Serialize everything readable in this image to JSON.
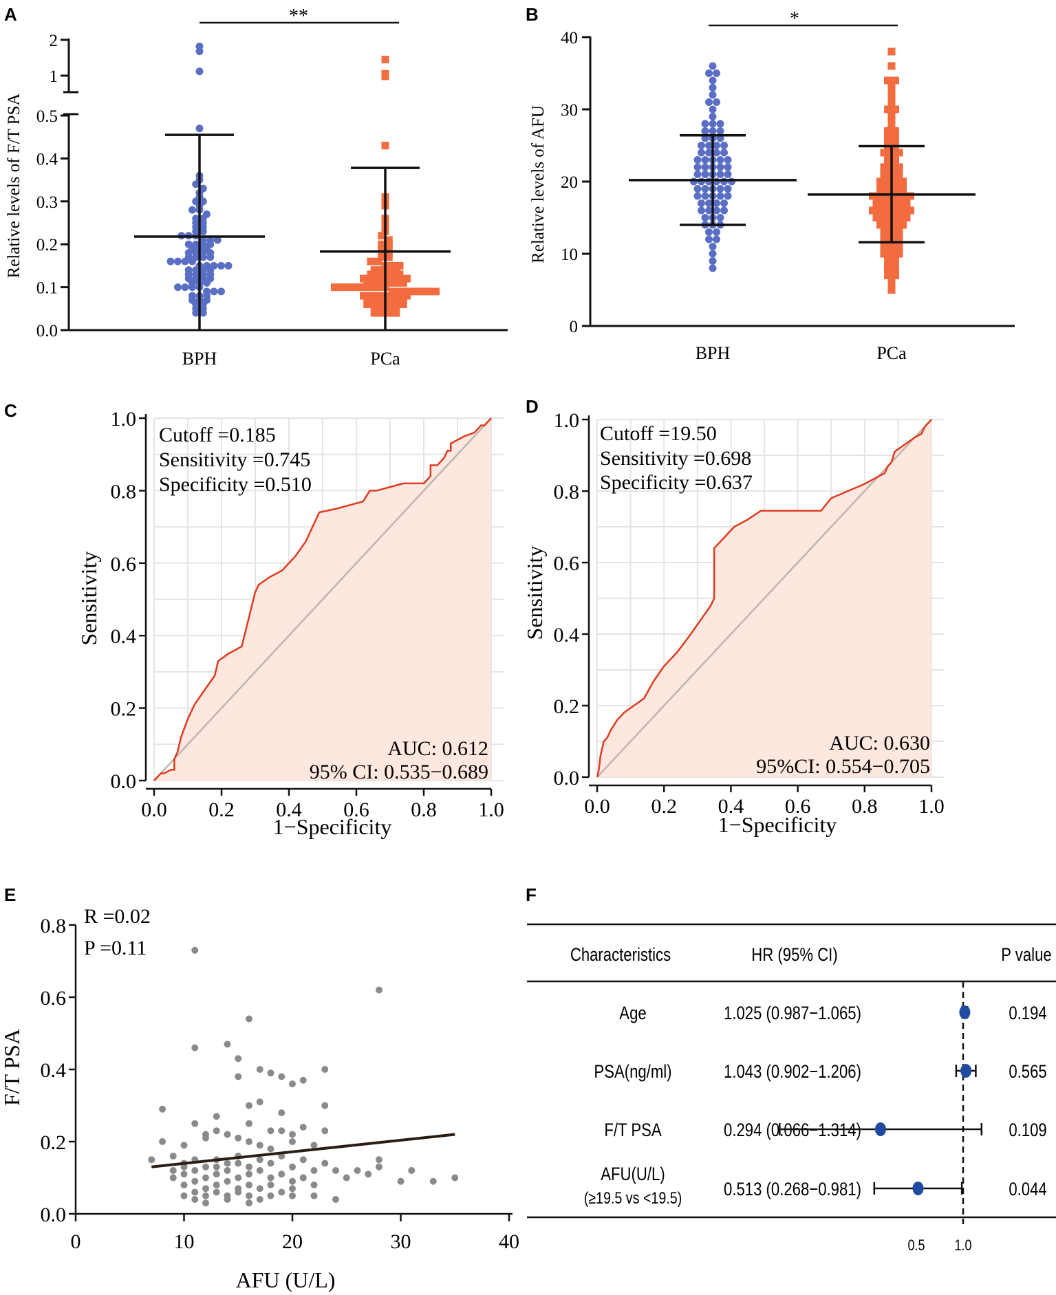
{
  "figure": {
    "colors": {
      "bph": "#5a6fc4",
      "pca": "#f26c3f",
      "roc_line": "#e03a1e",
      "roc_fill": "#fde7de",
      "diag": "#bdb5b0",
      "grid": "#e4e4e4",
      "scatter": "#8a8a8a",
      "forest": "#1f4aa0",
      "axis": "#111111"
    }
  },
  "chart_data": [
    {
      "panel": "A",
      "type": "scatter",
      "subtype": "dot-plot with mean and SD",
      "title": "",
      "ylabel": "Relative levels of F/T PSA",
      "xlabel": "",
      "categories": [
        "BPH",
        "PCa"
      ],
      "ylim_lower": [
        0,
        0.5
      ],
      "ylim_upper": [
        0.5,
        2
      ],
      "yticks_lower": [
        "0.0",
        "0.1",
        "0.2",
        "0.3",
        "0.4",
        "0.5"
      ],
      "yticks_upper": [
        "1",
        "2"
      ],
      "significance": "**",
      "series": [
        {
          "name": "BPH",
          "mean": 0.218,
          "sd_upper": 0.455,
          "sd_lower": 0.0,
          "values": [
            1.82,
            1.68,
            1.12,
            0.47,
            0.36,
            0.35,
            0.34,
            0.33,
            0.32,
            0.31,
            0.3,
            0.3,
            0.29,
            0.28,
            0.28,
            0.27,
            0.26,
            0.26,
            0.25,
            0.25,
            0.24,
            0.24,
            0.23,
            0.23,
            0.22,
            0.22,
            0.22,
            0.21,
            0.21,
            0.21,
            0.2,
            0.2,
            0.2,
            0.2,
            0.19,
            0.19,
            0.19,
            0.18,
            0.18,
            0.18,
            0.18,
            0.17,
            0.17,
            0.17,
            0.17,
            0.16,
            0.16,
            0.16,
            0.16,
            0.15,
            0.15,
            0.15,
            0.15,
            0.15,
            0.14,
            0.14,
            0.14,
            0.14,
            0.13,
            0.13,
            0.13,
            0.13,
            0.12,
            0.12,
            0.12,
            0.12,
            0.11,
            0.11,
            0.11,
            0.1,
            0.1,
            0.1,
            0.1,
            0.09,
            0.09,
            0.09,
            0.08,
            0.08,
            0.08,
            0.07,
            0.07,
            0.07,
            0.06,
            0.06,
            0.05,
            0.05,
            0.04,
            0.04
          ]
        },
        {
          "name": "PCa",
          "mean": 0.183,
          "sd_upper": 0.378,
          "sd_lower": 0.0,
          "values": [
            1.45,
            1.05,
            0.98,
            0.43,
            0.31,
            0.3,
            0.29,
            0.26,
            0.25,
            0.24,
            0.23,
            0.22,
            0.21,
            0.2,
            0.2,
            0.19,
            0.19,
            0.18,
            0.18,
            0.17,
            0.17,
            0.16,
            0.16,
            0.15,
            0.15,
            0.15,
            0.14,
            0.14,
            0.14,
            0.14,
            0.13,
            0.13,
            0.13,
            0.13,
            0.13,
            0.12,
            0.12,
            0.12,
            0.12,
            0.12,
            0.12,
            0.12,
            0.11,
            0.11,
            0.11,
            0.11,
            0.11,
            0.11,
            0.1,
            0.1,
            0.1,
            0.1,
            0.1,
            0.1,
            0.1,
            0.1,
            0.09,
            0.09,
            0.09,
            0.09,
            0.09,
            0.09,
            0.09,
            0.08,
            0.08,
            0.08,
            0.08,
            0.08,
            0.08,
            0.08,
            0.07,
            0.07,
            0.07,
            0.07,
            0.07,
            0.07,
            0.06,
            0.06,
            0.06,
            0.06,
            0.06,
            0.06,
            0.05,
            0.05,
            0.05,
            0.05,
            0.04,
            0.04,
            0.04,
            0.04
          ]
        }
      ]
    },
    {
      "panel": "B",
      "type": "scatter",
      "subtype": "dot-plot with mean and SD",
      "title": "",
      "ylabel": "Relative levels of AFU",
      "xlabel": "",
      "categories": [
        "BPH",
        "PCa"
      ],
      "ylim": [
        0,
        40
      ],
      "yticks": [
        "0",
        "10",
        "20",
        "30",
        "40"
      ],
      "significance": "*",
      "series": [
        {
          "name": "BPH",
          "mean": 20.2,
          "sd_upper": 26.4,
          "sd_lower": 14.0,
          "values": [
            36,
            35,
            35,
            34,
            33,
            32,
            31,
            31,
            30,
            29,
            28,
            28,
            28,
            27,
            27,
            27,
            26,
            26,
            26,
            25,
            25,
            25,
            25,
            24,
            24,
            24,
            24,
            23,
            23,
            23,
            23,
            23,
            22,
            22,
            22,
            22,
            22,
            21,
            21,
            21,
            21,
            21,
            20,
            20,
            20,
            20,
            20,
            20,
            19,
            19,
            19,
            19,
            19,
            18,
            18,
            18,
            18,
            18,
            17,
            17,
            17,
            17,
            16,
            16,
            16,
            16,
            15,
            15,
            15,
            14,
            14,
            14,
            13,
            13,
            12,
            12,
            11,
            10,
            9,
            8
          ]
        },
        {
          "name": "PCa",
          "mean": 18.2,
          "sd_upper": 24.9,
          "sd_lower": 11.6,
          "values": [
            38,
            36,
            34,
            34,
            33,
            32,
            31,
            30,
            30,
            29,
            28,
            27,
            27,
            26,
            26,
            25,
            25,
            24,
            24,
            24,
            23,
            23,
            22,
            22,
            22,
            21,
            21,
            21,
            20,
            20,
            20,
            20,
            19,
            19,
            19,
            19,
            18,
            18,
            18,
            18,
            18,
            18,
            17,
            17,
            17,
            17,
            17,
            16,
            16,
            16,
            16,
            16,
            16,
            15,
            15,
            15,
            15,
            15,
            14,
            14,
            14,
            14,
            13,
            13,
            13,
            12,
            12,
            12,
            11,
            11,
            11,
            10,
            10,
            10,
            9,
            9,
            8,
            8,
            7,
            7,
            6,
            5
          ]
        }
      ]
    },
    {
      "panel": "C",
      "type": "line",
      "subtype": "ROC curve",
      "xlabel": "1−Specificity",
      "ylabel": "Sensitivity",
      "xlim": [
        0,
        1
      ],
      "ylim": [
        0,
        1
      ],
      "xticks": [
        "0.0",
        "0.2",
        "0.4",
        "0.6",
        "0.8",
        "1.0"
      ],
      "yticks": [
        "0.0",
        "0.2",
        "0.4",
        "0.6",
        "0.8",
        "1.0"
      ],
      "annotations": [
        "Cutoff =0.185",
        "Sensitivity =0.745",
        "Specificity =0.510",
        "AUC: 0.612",
        "95% CI: 0.535−0.689"
      ],
      "x": [
        0,
        0.01,
        0.02,
        0.03,
        0.05,
        0.06,
        0.06,
        0.07,
        0.08,
        0.1,
        0.12,
        0.15,
        0.18,
        0.19,
        0.22,
        0.26,
        0.3,
        0.31,
        0.34,
        0.38,
        0.42,
        0.45,
        0.49,
        0.54,
        0.58,
        0.62,
        0.64,
        0.66,
        0.7,
        0.74,
        0.8,
        0.81,
        0.82,
        0.82,
        0.84,
        0.86,
        0.87,
        0.88,
        0.88,
        0.9,
        0.92,
        0.95,
        0.96,
        0.97,
        0.98,
        0.99,
        1
      ],
      "y": [
        0,
        0.01,
        0.02,
        0.02,
        0.03,
        0.03,
        0.06,
        0.08,
        0.12,
        0.17,
        0.21,
        0.25,
        0.29,
        0.33,
        0.35,
        0.37,
        0.52,
        0.54,
        0.56,
        0.58,
        0.62,
        0.66,
        0.74,
        0.75,
        0.76,
        0.77,
        0.8,
        0.8,
        0.81,
        0.82,
        0.82,
        0.83,
        0.84,
        0.87,
        0.87,
        0.89,
        0.91,
        0.91,
        0.93,
        0.94,
        0.95,
        0.96,
        0.97,
        0.98,
        0.98,
        0.99,
        1
      ]
    },
    {
      "panel": "D",
      "type": "line",
      "subtype": "ROC curve",
      "xlabel": "1−Specificity",
      "ylabel": "Sensitivity",
      "xlim": [
        0,
        1
      ],
      "ylim": [
        0,
        1
      ],
      "xticks": [
        "0.0",
        "0.2",
        "0.4",
        "0.6",
        "0.8",
        "1.0"
      ],
      "yticks": [
        "0.0",
        "0.2",
        "0.4",
        "0.6",
        "0.8",
        "1.0"
      ],
      "annotations": [
        "Cutoff =19.50",
        "Sensitivity =0.698",
        "Specificity =0.637",
        "AUC: 0.630",
        "95%CI: 0.554−0.705"
      ],
      "x": [
        0,
        0.005,
        0.01,
        0.02,
        0.03,
        0.04,
        0.06,
        0.08,
        0.11,
        0.14,
        0.17,
        0.2,
        0.24,
        0.28,
        0.31,
        0.34,
        0.35,
        0.35,
        0.38,
        0.41,
        0.45,
        0.49,
        0.55,
        0.62,
        0.67,
        0.7,
        0.75,
        0.8,
        0.84,
        0.86,
        0.87,
        0.88,
        0.89,
        0.92,
        0.95,
        0.97,
        0.98,
        1
      ],
      "y": [
        0,
        0.02,
        0.06,
        0.1,
        0.11,
        0.13,
        0.16,
        0.18,
        0.2,
        0.22,
        0.27,
        0.31,
        0.35,
        0.4,
        0.44,
        0.48,
        0.5,
        0.64,
        0.67,
        0.7,
        0.72,
        0.745,
        0.745,
        0.745,
        0.745,
        0.78,
        0.8,
        0.82,
        0.84,
        0.85,
        0.87,
        0.88,
        0.91,
        0.93,
        0.95,
        0.96,
        0.98,
        1
      ]
    },
    {
      "panel": "E",
      "type": "scatter",
      "xlabel": "AFU (U/L)",
      "ylabel": "F/T PSA",
      "xlim": [
        0,
        40
      ],
      "ylim": [
        0,
        0.8
      ],
      "xticks": [
        "0",
        "10",
        "20",
        "30",
        "40"
      ],
      "yticks": [
        "0.0",
        "0.2",
        "0.4",
        "0.6",
        "0.8"
      ],
      "annotations": [
        "R  =0.02",
        "P  =0.11"
      ],
      "fit_line": {
        "x": [
          7,
          35
        ],
        "y": [
          0.13,
          0.22
        ]
      },
      "points": [
        [
          11,
          0.73
        ],
        [
          28,
          0.62
        ],
        [
          16,
          0.54
        ],
        [
          14,
          0.47
        ],
        [
          11,
          0.46
        ],
        [
          15,
          0.43
        ],
        [
          17,
          0.4
        ],
        [
          23,
          0.4
        ],
        [
          15,
          0.38
        ],
        [
          18,
          0.39
        ],
        [
          21,
          0.37
        ],
        [
          20,
          0.36
        ],
        [
          19,
          0.38
        ],
        [
          17,
          0.31
        ],
        [
          16,
          0.3
        ],
        [
          23,
          0.3
        ],
        [
          19,
          0.28
        ],
        [
          13,
          0.27
        ],
        [
          16,
          0.25
        ],
        [
          11,
          0.25
        ],
        [
          21,
          0.24
        ],
        [
          12,
          0.22
        ],
        [
          13,
          0.23
        ],
        [
          18,
          0.23
        ],
        [
          19,
          0.23
        ],
        [
          20,
          0.22
        ],
        [
          23,
          0.23
        ],
        [
          8,
          0.2
        ],
        [
          8,
          0.29
        ],
        [
          10,
          0.19
        ],
        [
          12,
          0.21
        ],
        [
          14,
          0.22
        ],
        [
          15,
          0.21
        ],
        [
          16,
          0.2
        ],
        [
          17,
          0.19
        ],
        [
          18,
          0.18
        ],
        [
          20,
          0.2
        ],
        [
          22,
          0.19
        ],
        [
          28,
          0.15
        ],
        [
          28,
          0.13
        ],
        [
          7,
          0.15
        ],
        [
          9,
          0.16
        ],
        [
          10,
          0.14
        ],
        [
          11,
          0.15
        ],
        [
          12,
          0.13
        ],
        [
          13,
          0.15
        ],
        [
          14,
          0.14
        ],
        [
          15,
          0.16
        ],
        [
          16,
          0.13
        ],
        [
          17,
          0.15
        ],
        [
          18,
          0.14
        ],
        [
          19,
          0.16
        ],
        [
          20,
          0.13
        ],
        [
          21,
          0.15
        ],
        [
          22,
          0.12
        ],
        [
          23,
          0.14
        ],
        [
          24,
          0.12
        ],
        [
          25,
          0.1
        ],
        [
          26,
          0.12
        ],
        [
          27,
          0.11
        ],
        [
          9,
          0.12
        ],
        [
          10,
          0.11
        ],
        [
          11,
          0.12
        ],
        [
          12,
          0.1
        ],
        [
          13,
          0.11
        ],
        [
          14,
          0.12
        ],
        [
          15,
          0.1
        ],
        [
          16,
          0.11
        ],
        [
          17,
          0.12
        ],
        [
          18,
          0.1
        ],
        [
          19,
          0.11
        ],
        [
          20,
          0.09
        ],
        [
          21,
          0.1
        ],
        [
          22,
          0.08
        ],
        [
          10,
          0.08
        ],
        [
          11,
          0.09
        ],
        [
          12,
          0.07
        ],
        [
          13,
          0.08
        ],
        [
          14,
          0.09
        ],
        [
          15,
          0.07
        ],
        [
          16,
          0.08
        ],
        [
          17,
          0.07
        ],
        [
          18,
          0.08
        ],
        [
          19,
          0.06
        ],
        [
          20,
          0.07
        ],
        [
          10,
          0.05
        ],
        [
          11,
          0.06
        ],
        [
          12,
          0.05
        ],
        [
          13,
          0.06
        ],
        [
          14,
          0.05
        ],
        [
          15,
          0.06
        ],
        [
          16,
          0.05
        ],
        [
          17,
          0.04
        ],
        [
          18,
          0.05
        ],
        [
          11,
          0.04
        ],
        [
          12,
          0.03
        ],
        [
          14,
          0.04
        ],
        [
          16,
          0.03
        ],
        [
          24,
          0.04
        ],
        [
          30,
          0.09
        ],
        [
          33,
          0.09
        ],
        [
          35,
          0.1
        ],
        [
          31,
          0.12
        ],
        [
          9,
          0.1
        ],
        [
          10,
          0.13
        ],
        [
          21,
          0.1
        ],
        [
          22,
          0.05
        ],
        [
          20,
          0.05
        ],
        [
          13,
          0.13
        ],
        [
          15,
          0.14
        ]
      ]
    },
    {
      "panel": "F",
      "type": "table",
      "subtype": "forest plot",
      "columns": [
        "Characteristics",
        "HR (95% CI)",
        "P value"
      ],
      "xtick_labels": [
        "0.5",
        "1.0"
      ],
      "reference_line": 1.0,
      "rows": [
        {
          "name": "Age",
          "name2": "",
          "hr_text": "1.025 (0.987−1.065)",
          "p": "0.194",
          "hr": 1.025,
          "lo": 0.987,
          "hi": 1.065
        },
        {
          "name": "PSA(ng/ml)",
          "name2": "",
          "hr_text": "1.043 (0.902−1.206)",
          "p": "0.565",
          "hr": 1.043,
          "lo": 0.902,
          "hi": 1.206
        },
        {
          "name": "F/T PSA",
          "name2": "",
          "hr_text": "0.294 (0.066−1.314)",
          "p": "0.109",
          "hr": 0.294,
          "lo": 0.066,
          "hi": 1.314
        },
        {
          "name": "AFU(U/L)",
          "name2": "(≥19.5 vs <19.5)",
          "hr_text": "0.513 (0.268−0.981)",
          "p": "0.044",
          "hr": 0.513,
          "lo": 0.268,
          "hi": 0.981
        }
      ]
    }
  ]
}
